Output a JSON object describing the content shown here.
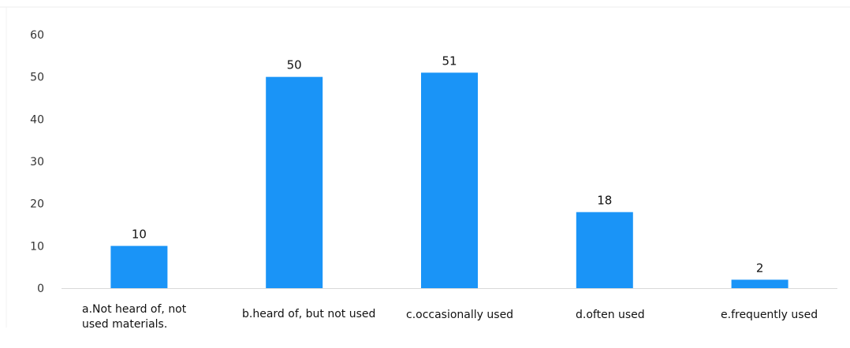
{
  "chart_data": {
    "type": "bar",
    "categories": [
      "a.Not heard of, not used materials.",
      "b.heard of, but not used",
      "c.occasionally used",
      "d.often used",
      "e.frequently used"
    ],
    "values": [
      10,
      50,
      51,
      18,
      2
    ],
    "data_labels": [
      "10",
      "50",
      "51",
      "18",
      "2"
    ],
    "yticks": [
      "0",
      "10",
      "20",
      "30",
      "40",
      "50",
      "60"
    ],
    "ylim": [
      0,
      60
    ],
    "grid": false,
    "legend": "none",
    "bar_color": "#1a94f7"
  }
}
